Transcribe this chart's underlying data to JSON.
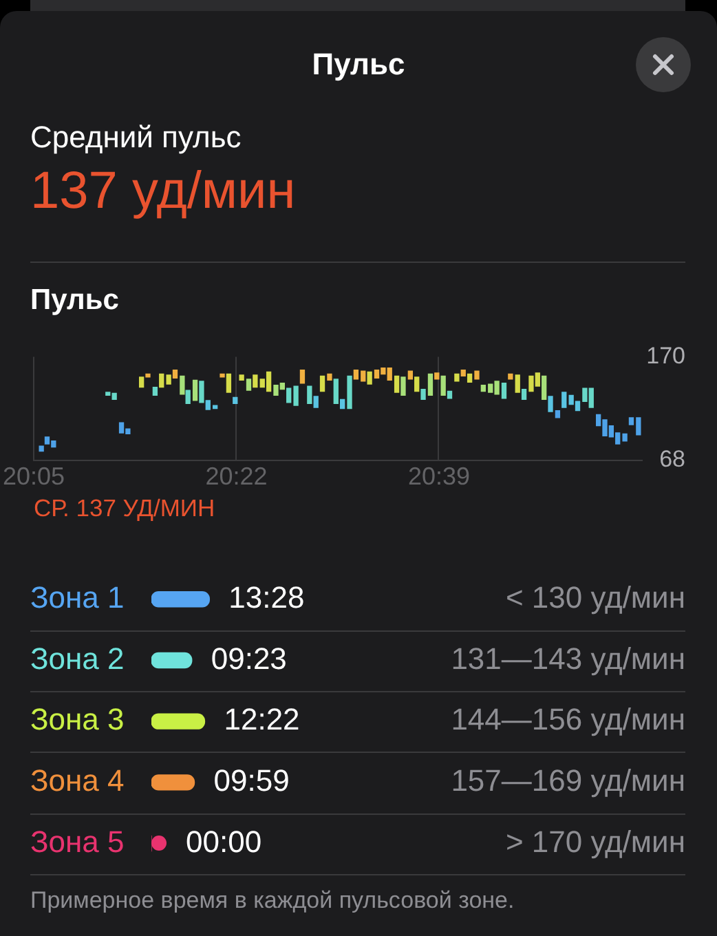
{
  "chart_data": [
    {
      "type": "other",
      "title": "Пульс",
      "subtitle": "Средний пульс",
      "annotations": [
        "137 уд/мин"
      ]
    },
    {
      "type": "bar",
      "title": "Пульс",
      "x": [
        20.094,
        20.102,
        20.111,
        20.187,
        20.196,
        20.206,
        20.215,
        20.234,
        20.243,
        20.253,
        20.262,
        20.272,
        20.281,
        20.291,
        20.299,
        20.309,
        20.318,
        20.327,
        20.337,
        20.347,
        20.356,
        20.365,
        20.374,
        20.384,
        20.393,
        20.403,
        20.412,
        20.422,
        20.431,
        20.44,
        20.45,
        20.459,
        20.469,
        20.478,
        20.487,
        20.497,
        20.506,
        20.515,
        20.525,
        20.534,
        20.544,
        20.553,
        20.563,
        20.572,
        20.581,
        20.591,
        20.6,
        20.61,
        20.619,
        20.628,
        20.638,
        20.647,
        20.656,
        20.665,
        20.675,
        20.684,
        20.693,
        20.703,
        20.712,
        20.722,
        20.731,
        20.741,
        20.75,
        20.76,
        20.769,
        20.779,
        20.788,
        20.797,
        20.806,
        20.816,
        20.825,
        20.835,
        20.844,
        20.854,
        20.863,
        20.873,
        20.882,
        20.891,
        20.9,
        20.91,
        20.919,
        20.929
      ],
      "base": [
        77,
        84,
        81,
        132,
        128,
        95,
        94,
        140,
        150,
        132,
        140,
        143,
        149,
        133,
        124,
        127,
        125,
        118,
        119,
        150,
        135,
        124,
        147,
        137,
        140,
        140,
        136,
        132,
        138,
        125,
        122,
        144,
        124,
        120,
        136,
        147,
        124,
        119,
        119,
        148,
        146,
        143,
        149,
        153,
        147,
        135,
        132,
        148,
        136,
        128,
        132,
        148,
        132,
        129,
        146,
        151,
        145,
        148,
        136,
        135,
        133,
        129,
        148,
        135,
        128,
        136,
        141,
        128,
        116,
        110,
        120,
        123,
        117,
        126,
        120,
        102,
        92,
        91,
        84,
        87,
        103,
        93
      ],
      "values": [
        5,
        7,
        6,
        3,
        6,
        10,
        5,
        10,
        3,
        8,
        13,
        9,
        8,
        18,
        13,
        20,
        21,
        9,
        3,
        3,
        18,
        6,
        5,
        11,
        12,
        8,
        19,
        10,
        6,
        14,
        19,
        13,
        17,
        11,
        15,
        6,
        24,
        9,
        32,
        9,
        10,
        12,
        8,
        6,
        12,
        16,
        18,
        8,
        14,
        10,
        21,
        6,
        19,
        7,
        7,
        6,
        8,
        8,
        6,
        8,
        13,
        15,
        5,
        17,
        10,
        15,
        13,
        23,
        15,
        7,
        15,
        9,
        9,
        13,
        19,
        11,
        16,
        11,
        11,
        7,
        7,
        17
      ],
      "colors": [
        "#4ea2e8",
        "#4ea2e8",
        "#4ea2e8",
        "#68d8c8",
        "#68d8c8",
        "#4ea2e8",
        "#4ea2e8",
        "#d6dc4a",
        "#f0b040",
        "#68d8c8",
        "#d6dc4a",
        "#d6dc4a",
        "#f0b040",
        "#a8e07a",
        "#68d8c8",
        "#a8e07a",
        "#68d8c8",
        "#5ac4e2",
        "#5ac4e2",
        "#f0b040",
        "#d6dc4a",
        "#5ac4e2",
        "#d6dc4a",
        "#a8e07a",
        "#d6dc4a",
        "#d6dc4a",
        "#d6dc4a",
        "#a8e07a",
        "#a8e07a",
        "#68d8c8",
        "#68d8c8",
        "#f0b040",
        "#68d8c8",
        "#5ac4e2",
        "#d6dc4a",
        "#f0b040",
        "#68d8c8",
        "#5ac4e2",
        "#68d8c8",
        "#f0b040",
        "#f0b040",
        "#d6dc4a",
        "#f0b040",
        "#f0b040",
        "#f0b040",
        "#d6dc4a",
        "#a8e07a",
        "#f0b040",
        "#d6dc4a",
        "#68d8c8",
        "#a8e07a",
        "#f0b040",
        "#a8e07a",
        "#68d8c8",
        "#d6dc4a",
        "#f0b040",
        "#d6dc4a",
        "#f0b040",
        "#a8e07a",
        "#a8e07a",
        "#a8e07a",
        "#68d8c8",
        "#f0b040",
        "#d6dc4a",
        "#68d8c8",
        "#d6dc4a",
        "#d6dc4a",
        "#a8e07a",
        "#5ac4e2",
        "#4ea2e8",
        "#5ac4e2",
        "#5ac4e2",
        "#5ac4e2",
        "#68d8c8",
        "#68d8c8",
        "#4ea2e8",
        "#4ea2e8",
        "#4ea2e8",
        "#4ea2e8",
        "#4ea2e8",
        "#4ea2e8",
        "#4ea2e8"
      ],
      "xlim": [
        20.0833,
        20.933
      ],
      "xticks": [
        {
          "value": 20.0833,
          "label": "20:05"
        },
        {
          "value": 20.3667,
          "label": "20:22"
        },
        {
          "value": 20.65,
          "label": "20:39"
        }
      ],
      "ylim": [
        68,
        170
      ],
      "yticks": [
        68,
        170
      ],
      "grid": "x",
      "annotations": [
        "СР. 137 УД/МИН"
      ]
    },
    {
      "type": "bar",
      "orientation": "horizontal",
      "categories": [
        "Зона 1",
        "Зона 2",
        "Зона 3",
        "Зона 4",
        "Зона 5"
      ],
      "values": [
        13.47,
        9.38,
        12.37,
        9.98,
        0
      ],
      "value_labels": [
        "13:28",
        "09:23",
        "12:22",
        "09:59",
        "00:00"
      ],
      "colors": [
        "#56a5f2",
        "#6fe3dc",
        "#c9f045",
        "#f0903c",
        "#e8336f"
      ],
      "grid": "y",
      "tick_labels": "y",
      "annotations": [
        "< 130 уд/мин",
        "131—143 уд/мин",
        "144—156 уд/мин",
        "157—169 уд/мин",
        "> 170 уд/мин",
        "Примерное время в каждой пульсовой зоне."
      ]
    }
  ]
}
